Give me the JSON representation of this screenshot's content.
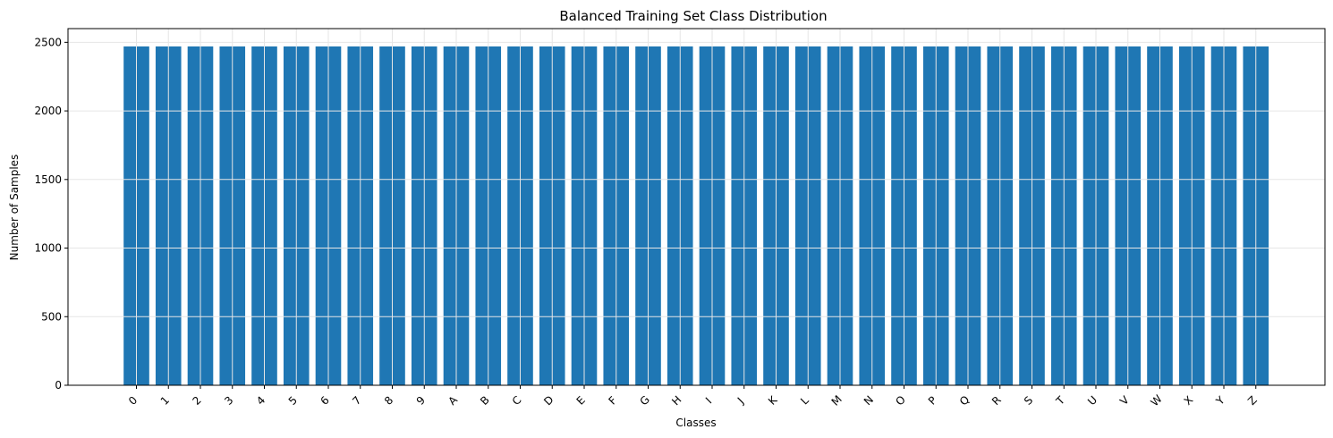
{
  "chart_data": {
    "type": "bar",
    "title": "Balanced Training Set Class Distribution",
    "xlabel": "Classes",
    "ylabel": "Number of Samples",
    "categories": [
      "0",
      "1",
      "2",
      "3",
      "4",
      "5",
      "6",
      "7",
      "8",
      "9",
      "A",
      "B",
      "C",
      "D",
      "E",
      "F",
      "G",
      "H",
      "I",
      "J",
      "K",
      "L",
      "M",
      "N",
      "O",
      "P",
      "Q",
      "R",
      "S",
      "T",
      "U",
      "V",
      "W",
      "X",
      "Y",
      "Z"
    ],
    "values": [
      2470,
      2470,
      2470,
      2470,
      2470,
      2470,
      2470,
      2470,
      2470,
      2470,
      2470,
      2470,
      2470,
      2470,
      2470,
      2470,
      2470,
      2470,
      2470,
      2470,
      2470,
      2470,
      2470,
      2470,
      2470,
      2470,
      2470,
      2470,
      2470,
      2470,
      2470,
      2470,
      2470,
      2470,
      2470,
      2470
    ],
    "ylim": [
      0,
      2600
    ],
    "yticks": [
      0,
      500,
      1000,
      1500,
      2000,
      2500
    ],
    "grid": true,
    "bar_color": "#1f77b4",
    "grid_color": "#e6e6e6"
  }
}
